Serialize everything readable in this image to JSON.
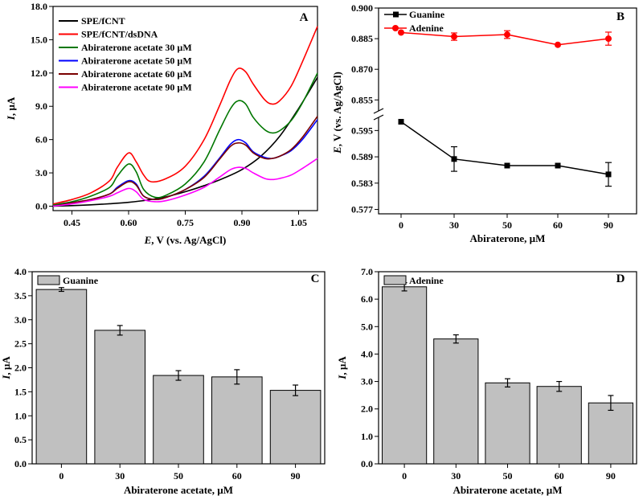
{
  "chart_data": [
    {
      "panel": "A",
      "type": "line",
      "xlabel_italic": "E",
      "xlabel_rest": ", V (vs. Ag/AgCl)",
      "ylabel_italic": "I",
      "ylabel_rest": ", µA",
      "xlim": [
        0.4,
        1.1
      ],
      "ylim": [
        -0.4,
        18.0
      ],
      "xticks": [
        "0.45",
        "0.60",
        "0.75",
        "0.90",
        "1.05"
      ],
      "xtick_values": [
        0.45,
        0.6,
        0.75,
        0.9,
        1.05
      ],
      "yticks": [
        "0.0",
        "3.0",
        "6.0",
        "9.0",
        "12.0",
        "15.0",
        "18.0"
      ],
      "ytick_values": [
        0,
        3,
        6,
        9,
        12,
        15,
        18
      ],
      "series": [
        {
          "name": "SPE/fCNT",
          "color": "#000000",
          "x": [
            0.4,
            0.45,
            0.5,
            0.55,
            0.6,
            0.65,
            0.7,
            0.75,
            0.8,
            0.85,
            0.9,
            0.95,
            1.0,
            1.05,
            1.1
          ],
          "y": [
            0.0,
            0.05,
            0.12,
            0.22,
            0.35,
            0.55,
            0.85,
            1.3,
            1.85,
            2.5,
            3.3,
            4.5,
            6.3,
            8.8,
            11.6
          ]
        },
        {
          "name": "SPE/fCNT/dsDNA",
          "color": "#ff0000",
          "x": [
            0.4,
            0.45,
            0.5,
            0.55,
            0.57,
            0.6,
            0.62,
            0.64,
            0.66,
            0.7,
            0.75,
            0.8,
            0.84,
            0.87,
            0.89,
            0.91,
            0.93,
            0.96,
            0.98,
            1.0,
            1.03,
            1.06,
            1.1
          ],
          "y": [
            0.2,
            0.6,
            1.2,
            2.3,
            3.5,
            4.8,
            4.0,
            2.8,
            2.2,
            2.5,
            3.6,
            6.0,
            9.0,
            11.4,
            12.4,
            12.1,
            11.0,
            9.6,
            9.2,
            9.5,
            10.8,
            13.0,
            16.2
          ]
        },
        {
          "name": "Abiraterone acetate 30 µM",
          "color": "#007700",
          "x": [
            0.4,
            0.45,
            0.5,
            0.55,
            0.57,
            0.6,
            0.62,
            0.64,
            0.67,
            0.7,
            0.75,
            0.8,
            0.84,
            0.87,
            0.89,
            0.91,
            0.93,
            0.96,
            0.98,
            1.0,
            1.03,
            1.06,
            1.1
          ],
          "y": [
            0.1,
            0.4,
            0.9,
            1.7,
            2.7,
            3.8,
            3.1,
            1.5,
            0.8,
            1.0,
            2.0,
            4.0,
            6.8,
            8.8,
            9.5,
            9.2,
            8.0,
            6.9,
            6.6,
            6.8,
            7.7,
            9.3,
            12.0
          ]
        },
        {
          "name": "Abiraterone acetate 50 µM",
          "color": "#0000ff",
          "x": [
            0.4,
            0.45,
            0.5,
            0.55,
            0.57,
            0.6,
            0.62,
            0.64,
            0.67,
            0.7,
            0.75,
            0.8,
            0.84,
            0.87,
            0.89,
            0.91,
            0.93,
            0.96,
            0.98,
            1.0,
            1.03,
            1.06,
            1.1
          ],
          "y": [
            0.0,
            0.3,
            0.6,
            1.1,
            1.7,
            2.3,
            2.0,
            0.9,
            0.6,
            0.8,
            1.5,
            2.7,
            4.3,
            5.6,
            6.0,
            5.7,
            4.9,
            4.4,
            4.3,
            4.5,
            5.0,
            6.0,
            7.8
          ]
        },
        {
          "name": "Abiraterone acetate 60 µM",
          "color": "#7a0000",
          "x": [
            0.4,
            0.45,
            0.5,
            0.55,
            0.57,
            0.6,
            0.62,
            0.64,
            0.67,
            0.7,
            0.75,
            0.8,
            0.84,
            0.87,
            0.89,
            0.91,
            0.93,
            0.96,
            0.98,
            1.0,
            1.03,
            1.06,
            1.1
          ],
          "y": [
            0.0,
            0.3,
            0.6,
            1.1,
            1.6,
            2.2,
            1.9,
            0.9,
            0.6,
            0.8,
            1.5,
            2.6,
            4.2,
            5.4,
            5.7,
            5.5,
            4.8,
            4.3,
            4.3,
            4.5,
            5.1,
            6.2,
            8.1
          ]
        },
        {
          "name": "Abiraterone acetate 90 µM",
          "color": "#ff00ff",
          "x": [
            0.4,
            0.45,
            0.5,
            0.55,
            0.57,
            0.6,
            0.62,
            0.64,
            0.67,
            0.7,
            0.75,
            0.8,
            0.84,
            0.87,
            0.89,
            0.91,
            0.93,
            0.96,
            0.98,
            1.0,
            1.03,
            1.06,
            1.1
          ],
          "y": [
            0.0,
            0.2,
            0.5,
            0.9,
            1.2,
            1.6,
            1.3,
            0.6,
            0.4,
            0.5,
            1.0,
            1.7,
            2.6,
            3.3,
            3.5,
            3.4,
            3.0,
            2.5,
            2.4,
            2.5,
            2.8,
            3.4,
            4.3
          ]
        }
      ]
    },
    {
      "panel": "B",
      "type": "line",
      "xlabel": "Abiraterone, µM",
      "ylabel_italic": "E",
      "ylabel_rest": ", V (vs. Ag/AgCl)",
      "axis_break": true,
      "x_categories": [
        "0",
        "30",
        "50",
        "60",
        "90"
      ],
      "upper_ylim": [
        0.85,
        0.9
      ],
      "upper_yticks": [
        "0.855",
        "0.870",
        "0.885",
        "0.900"
      ],
      "upper_ytick_values": [
        0.855,
        0.87,
        0.885,
        0.9
      ],
      "lower_ylim": [
        0.576,
        0.598
      ],
      "lower_yticks": [
        "0.577",
        "0.583",
        "0.589",
        "0.595"
      ],
      "lower_ytick_values": [
        0.577,
        0.583,
        0.589,
        0.595
      ],
      "series": [
        {
          "name": "Guanine",
          "color": "#000000",
          "marker": "square",
          "segment": "lower",
          "values": [
            0.597,
            0.5885,
            0.587,
            0.587,
            0.585
          ],
          "errors": [
            0.0,
            0.0028,
            0.0,
            0.0,
            0.0027
          ]
        },
        {
          "name": "Adenine",
          "color": "#ff0000",
          "marker": "circle",
          "segment": "upper",
          "values": [
            0.888,
            0.886,
            0.887,
            0.882,
            0.885
          ],
          "errors": [
            0.0,
            0.0018,
            0.0019,
            0.0,
            0.0032
          ]
        }
      ]
    },
    {
      "panel": "C",
      "type": "bar",
      "legend": "Guanine",
      "bar_color": "#c0c0c0",
      "categories": [
        "0",
        "30",
        "50",
        "60",
        "90"
      ],
      "values": [
        3.63,
        2.78,
        1.84,
        1.81,
        1.53
      ],
      "errors": [
        0.04,
        0.1,
        0.1,
        0.15,
        0.11
      ],
      "xlabel": "Abiraterone acetate, µM",
      "ylabel_italic": "I",
      "ylabel_rest": ", µA",
      "ylim": [
        0,
        4.0
      ],
      "yticks": [
        "0.0",
        "0.5",
        "1.0",
        "1.5",
        "2.0",
        "2.5",
        "3.0",
        "3.5",
        "4.0"
      ],
      "ytick_values": [
        0,
        0.5,
        1.0,
        1.5,
        2.0,
        2.5,
        3.0,
        3.5,
        4.0
      ]
    },
    {
      "panel": "D",
      "type": "bar",
      "legend": "Adenine",
      "bar_color": "#c0c0c0",
      "categories": [
        "0",
        "30",
        "50",
        "60",
        "90"
      ],
      "values": [
        6.45,
        4.55,
        2.95,
        2.82,
        2.22
      ],
      "errors": [
        0.15,
        0.15,
        0.15,
        0.18,
        0.27
      ],
      "xlabel": "Abiraterone acetate, µM",
      "ylabel_italic": "I",
      "ylabel_rest": ", µA",
      "ylim": [
        0,
        7.0
      ],
      "yticks": [
        "0.0",
        "1.0",
        "2.0",
        "3.0",
        "4.0",
        "5.0",
        "6.0",
        "7.0"
      ],
      "ytick_values": [
        0,
        1,
        2,
        3,
        4,
        5,
        6,
        7
      ]
    }
  ]
}
